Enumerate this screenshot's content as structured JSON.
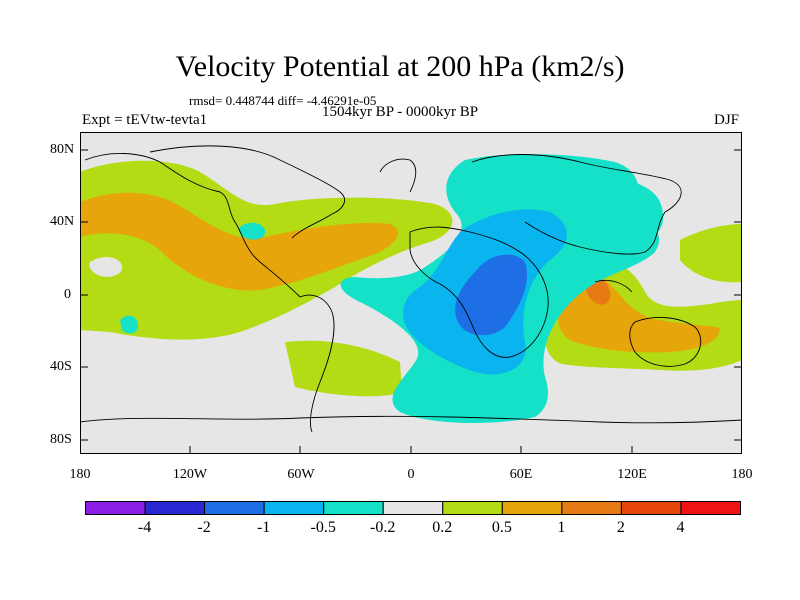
{
  "title": "Velocity Potential at 200 hPa (km2/s)",
  "stats": "rmsd= 0.448744 diff= -4.46291e-05",
  "period": "1504kyr BP - 0000kyr BP",
  "experiment": "Expt = tEVtw-tevta1",
  "season": "DJF",
  "map": {
    "lat_ticks": [
      "80N",
      "40N",
      "0",
      "40S",
      "80S"
    ],
    "lon_ticks": [
      "180",
      "120W",
      "60W",
      "0",
      "60E",
      "120E",
      "180"
    ],
    "background_color": "#e6e6e6"
  },
  "colorbar": {
    "colors": [
      "#8c1ee6",
      "#2828d2",
      "#1e6ee6",
      "#0ab4ee",
      "#14e1c8",
      "#e6e6e6",
      "#b4dc14",
      "#e6a50a",
      "#e67a14",
      "#e6460a",
      "#ee1414"
    ],
    "labels": [
      "-4",
      "-2",
      "-1",
      "-0.5",
      "-0.2",
      "0.2",
      "0.5",
      "1",
      "2",
      "4"
    ]
  },
  "palette": {
    "neg_small": "#14e1c8",
    "neg_medium": "#0ab4ee",
    "neg_large": "#1e6ee6",
    "pos_small": "#b4dc14",
    "pos_medium": "#e6a50a",
    "pos_large": "#e67a14"
  }
}
